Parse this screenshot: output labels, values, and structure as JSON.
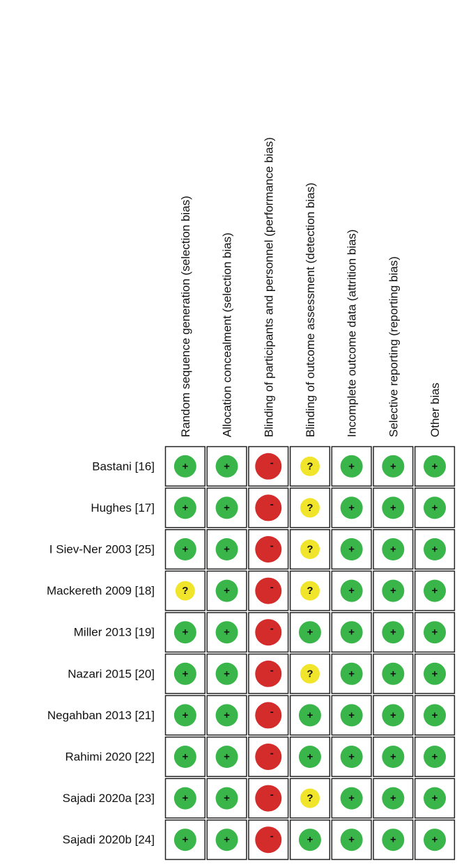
{
  "domains": [
    "Random sequence generation (selection bias)",
    "Allocation concealment (selection bias)",
    "Blinding of participants and personnel (performance bias)",
    "Blinding of outcome assessment (detection bias)",
    "Incomplete outcome data (attrition bias)",
    "Selective reporting (reporting bias)",
    "Other bias"
  ],
  "studies": [
    {
      "name": "Bastani [16]",
      "judgments": [
        "+",
        "+",
        "-",
        "?",
        "+",
        "+",
        "+"
      ]
    },
    {
      "name": "Hughes [17]",
      "judgments": [
        "+",
        "+",
        "-",
        "?",
        "+",
        "+",
        "+"
      ]
    },
    {
      "name": "I Siev-Ner 2003 [25]",
      "judgments": [
        "+",
        "+",
        "-",
        "?",
        "+",
        "+",
        "+"
      ]
    },
    {
      "name": "Mackereth 2009 [18]",
      "judgments": [
        "?",
        "+",
        "-",
        "?",
        "+",
        "+",
        "+"
      ]
    },
    {
      "name": "Miller 2013 [19]",
      "judgments": [
        "+",
        "+",
        "-",
        "+",
        "+",
        "+",
        "+"
      ]
    },
    {
      "name": "Nazari 2015 [20]",
      "judgments": [
        "+",
        "+",
        "-",
        "?",
        "+",
        "+",
        "+"
      ]
    },
    {
      "name": "Negahban 2013 [21]",
      "judgments": [
        "+",
        "+",
        "-",
        "+",
        "+",
        "+",
        "+"
      ]
    },
    {
      "name": "Rahimi 2020 [22]",
      "judgments": [
        "+",
        "+",
        "-",
        "+",
        "+",
        "+",
        "+"
      ]
    },
    {
      "name": "Sajadi 2020a [23]",
      "judgments": [
        "+",
        "+",
        "-",
        "?",
        "+",
        "+",
        "+"
      ]
    },
    {
      "name": "Sajadi 2020b [24]",
      "judgments": [
        "+",
        "+",
        "-",
        "+",
        "+",
        "+",
        "+"
      ]
    }
  ]
}
